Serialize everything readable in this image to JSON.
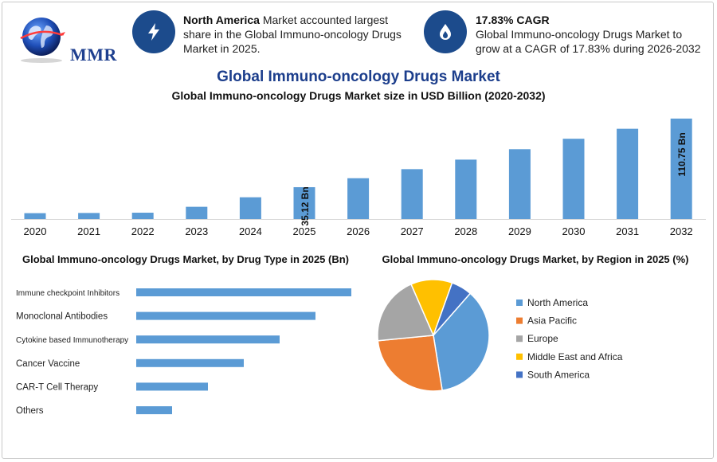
{
  "header": {
    "logo_text": "MMR",
    "highlight1": {
      "bold": "North America",
      "text": " Market accounted largest share in the Global Immuno-oncology Drugs Market in 2025.",
      "icon": "lightning-icon"
    },
    "highlight2": {
      "bold": "17.83% CAGR",
      "text": "Global Immuno-oncology Drugs Market to grow at a CAGR of 17.83% during 2026-2032",
      "icon": "flame-drop-icon"
    }
  },
  "titles": {
    "main": "Global Immuno-oncology Drugs Market",
    "sub": "Global Immuno-oncology Drugs Market size in USD Billion (2020-2032)",
    "left_panel": "Global Immuno-oncology Drugs Market, by Drug Type in 2025 (Bn)",
    "right_panel": "Global Immuno-oncology Drugs Market, by Region in 2025 (%)"
  },
  "colors": {
    "bar": "#5b9bd5",
    "accent": "#1c4b8c",
    "title": "#1c3e8c"
  },
  "chart_data": [
    {
      "type": "bar",
      "categories": [
        "2020",
        "2021",
        "2022",
        "2023",
        "2024",
        "2025",
        "2026",
        "2027",
        "2028",
        "2029",
        "2030",
        "2031",
        "2032"
      ],
      "values": [
        6.5,
        6.7,
        7.0,
        13.5,
        24.0,
        35.12,
        45.0,
        55.0,
        65.5,
        77.0,
        88.5,
        99.5,
        110.75
      ],
      "data_labels": [
        {
          "index": 5,
          "text": "35.12 Bn"
        },
        {
          "index": 12,
          "text": "110.75 Bn"
        }
      ],
      "ylim": [
        0,
        115
      ],
      "grid": false
    },
    {
      "type": "bar",
      "orientation": "horizontal",
      "categories": [
        "Immune checkpoint Inhibitors",
        "Monoclonal Antibodies",
        "Cytokine based Immunotherapy",
        "Cancer Vaccine",
        "CAR-T Cell Therapy",
        "Others"
      ],
      "values": [
        6,
        5,
        4,
        3,
        2,
        1
      ],
      "grid": false
    },
    {
      "type": "pie",
      "categories": [
        "North America",
        "Asia Pacific",
        "Europe",
        "Middle East and Africa",
        "South America"
      ],
      "values": [
        36,
        26,
        20,
        12,
        6
      ],
      "colors": [
        "#5b9bd5",
        "#ed7d31",
        "#a5a5a5",
        "#ffc000",
        "#4472c4"
      ],
      "legend": "right"
    }
  ]
}
